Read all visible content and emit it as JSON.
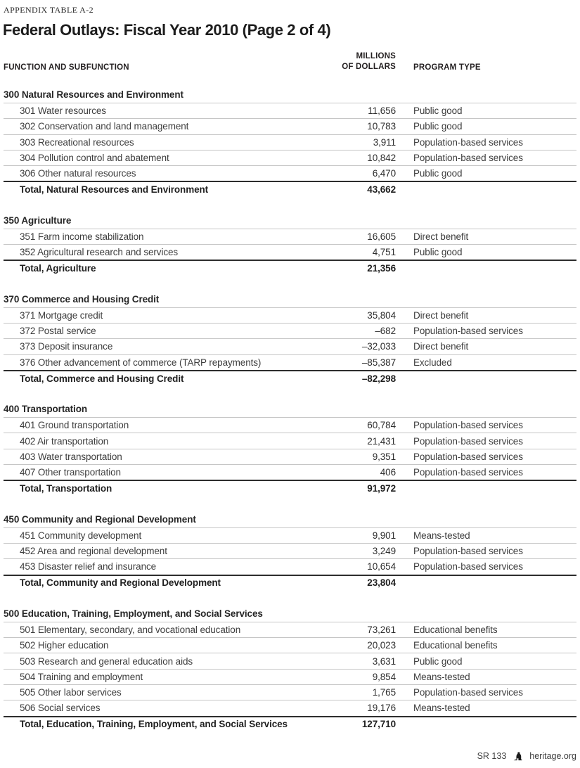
{
  "page": {
    "eyebrow": "APPENDIX TABLE A-2",
    "title": "Federal Outlays: Fiscal Year 2010 (Page 2 of 4)",
    "footer": {
      "report_id": "SR 133",
      "bell_icon": "heritage-bell-icon",
      "site": "heritage.org"
    }
  },
  "table": {
    "headers": {
      "function": "FUNCTION AND SUBFUNCTION",
      "amount_line1": "MILLIONS",
      "amount_line2": "OF DOLLARS",
      "program": "PROGRAM TYPE"
    },
    "sections": [
      {
        "name": "300 Natural Resources and Environment",
        "rows": [
          {
            "label": "301 Water resources",
            "amount": "11,656",
            "program": "Public good"
          },
          {
            "label": "302 Conservation and land management",
            "amount": "10,783",
            "program": "Public good"
          },
          {
            "label": "303 Recreational resources",
            "amount": "3,911",
            "program": "Population-based services"
          },
          {
            "label": "304 Pollution control and abatement",
            "amount": "10,842",
            "program": "Population-based services"
          },
          {
            "label": "306 Other natural resources",
            "amount": "6,470",
            "program": "Public good"
          }
        ],
        "total": {
          "label": "Total, Natural Resources and Environment",
          "amount": "43,662"
        }
      },
      {
        "name": "350 Agriculture",
        "rows": [
          {
            "label": "351 Farm income stabilization",
            "amount": "16,605",
            "program": "Direct benefit"
          },
          {
            "label": "352 Agricultural research and services",
            "amount": "4,751",
            "program": "Public good"
          }
        ],
        "total": {
          "label": "Total, Agriculture",
          "amount": "21,356"
        }
      },
      {
        "name": "370 Commerce and Housing Credit",
        "rows": [
          {
            "label": "371 Mortgage credit",
            "amount": "35,804",
            "program": "Direct benefit"
          },
          {
            "label": "372 Postal service",
            "amount": "–682",
            "program": "Population-based services"
          },
          {
            "label": "373 Deposit insurance",
            "amount": "–32,033",
            "program": "Direct benefit"
          },
          {
            "label": "376 Other advancement of commerce (TARP repayments)",
            "amount": "–85,387",
            "program": "Excluded"
          }
        ],
        "total": {
          "label": "Total, Commerce and Housing Credit",
          "amount": "–82,298"
        }
      },
      {
        "name": "400 Transportation",
        "rows": [
          {
            "label": "401 Ground transportation",
            "amount": "60,784",
            "program": "Population-based services"
          },
          {
            "label": "402 Air transportation",
            "amount": "21,431",
            "program": "Population-based services"
          },
          {
            "label": "403 Water transportation",
            "amount": "9,351",
            "program": "Population-based services"
          },
          {
            "label": "407 Other transportation",
            "amount": "406",
            "program": "Population-based services"
          }
        ],
        "total": {
          "label": "Total, Transportation",
          "amount": "91,972"
        }
      },
      {
        "name": "450 Community and Regional Development",
        "rows": [
          {
            "label": "451 Community development",
            "amount": "9,901",
            "program": "Means-tested"
          },
          {
            "label": "452 Area and regional development",
            "amount": "3,249",
            "program": "Population-based services"
          },
          {
            "label": "453 Disaster relief and insurance",
            "amount": "10,654",
            "program": "Population-based services"
          }
        ],
        "total": {
          "label": "Total, Community and Regional Development",
          "amount": "23,804"
        }
      },
      {
        "name": "500 Education, Training, Employment, and Social Services",
        "rows": [
          {
            "label": "501 Elementary, secondary, and vocational education",
            "amount": "73,261",
            "program": "Educational benefits"
          },
          {
            "label": "502 Higher education",
            "amount": "20,023",
            "program": "Educational benefits"
          },
          {
            "label": "503 Research and general education aids",
            "amount": "3,631",
            "program": "Public good"
          },
          {
            "label": "504 Training and employment",
            "amount": "9,854",
            "program": "Means-tested"
          },
          {
            "label": "505 Other labor services",
            "amount": "1,765",
            "program": "Population-based services"
          },
          {
            "label": "506 Social services",
            "amount": "19,176",
            "program": "Means-tested"
          }
        ],
        "total": {
          "label": "Total, Education, Training, Employment, and Social Services",
          "amount": "127,710"
        }
      }
    ]
  }
}
